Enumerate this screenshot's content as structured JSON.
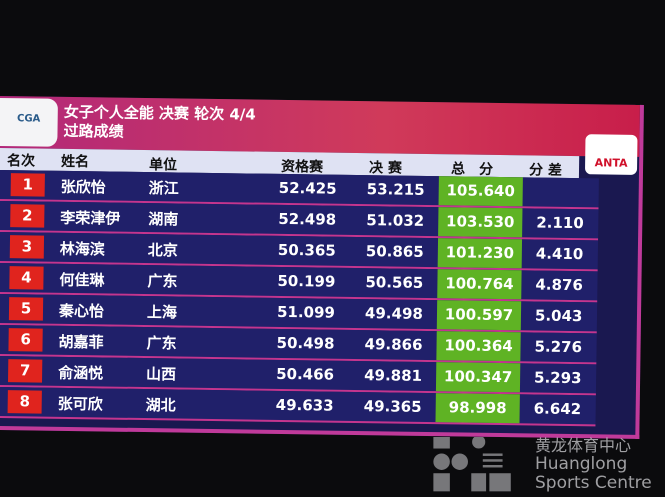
{
  "header": {
    "logo_text": "CGA",
    "title": "女子个人全能 决赛 轮次 4/4",
    "subtitle": "过路成绩",
    "sponsor": "ANTA"
  },
  "columns": {
    "rank": "名次",
    "name": "姓名",
    "unit": "单位",
    "qual": "资格赛",
    "final": "决 赛",
    "total": "总　分",
    "diff": "分 差"
  },
  "rows": [
    {
      "rank": "1",
      "name": "张欣怡",
      "unit": "浙江",
      "qual": "52.425",
      "final": "53.215",
      "total": "105.640",
      "diff": ""
    },
    {
      "rank": "2",
      "name": "李荣津伊",
      "unit": "湖南",
      "qual": "52.498",
      "final": "51.032",
      "total": "103.530",
      "diff": "2.110"
    },
    {
      "rank": "3",
      "name": "林海滨",
      "unit": "北京",
      "qual": "50.365",
      "final": "50.865",
      "total": "101.230",
      "diff": "4.410"
    },
    {
      "rank": "4",
      "name": "何佳琳",
      "unit": "广东",
      "qual": "50.199",
      "final": "50.565",
      "total": "100.764",
      "diff": "4.876"
    },
    {
      "rank": "5",
      "name": "秦心怡",
      "unit": "上海",
      "qual": "51.099",
      "final": "49.498",
      "total": "100.597",
      "diff": "5.043"
    },
    {
      "rank": "6",
      "name": "胡嘉菲",
      "unit": "广东",
      "qual": "50.498",
      "final": "49.866",
      "total": "100.364",
      "diff": "5.276"
    },
    {
      "rank": "7",
      "name": "俞涵悦",
      "unit": "山西",
      "qual": "50.466",
      "final": "49.881",
      "total": "100.347",
      "diff": "5.293"
    },
    {
      "rank": "8",
      "name": "张可欣",
      "unit": "湖北",
      "qual": "49.633",
      "final": "49.365",
      "total": "98.998",
      "diff": "6.642"
    }
  ],
  "watermark": {
    "zh": "黄龙体育中心",
    "en1": "Huanglong",
    "en2": "Sports Centre"
  },
  "colors": {
    "header": "#c8285e",
    "rank": "#e0241e",
    "total": "#5fb324",
    "row": "#20206a"
  }
}
